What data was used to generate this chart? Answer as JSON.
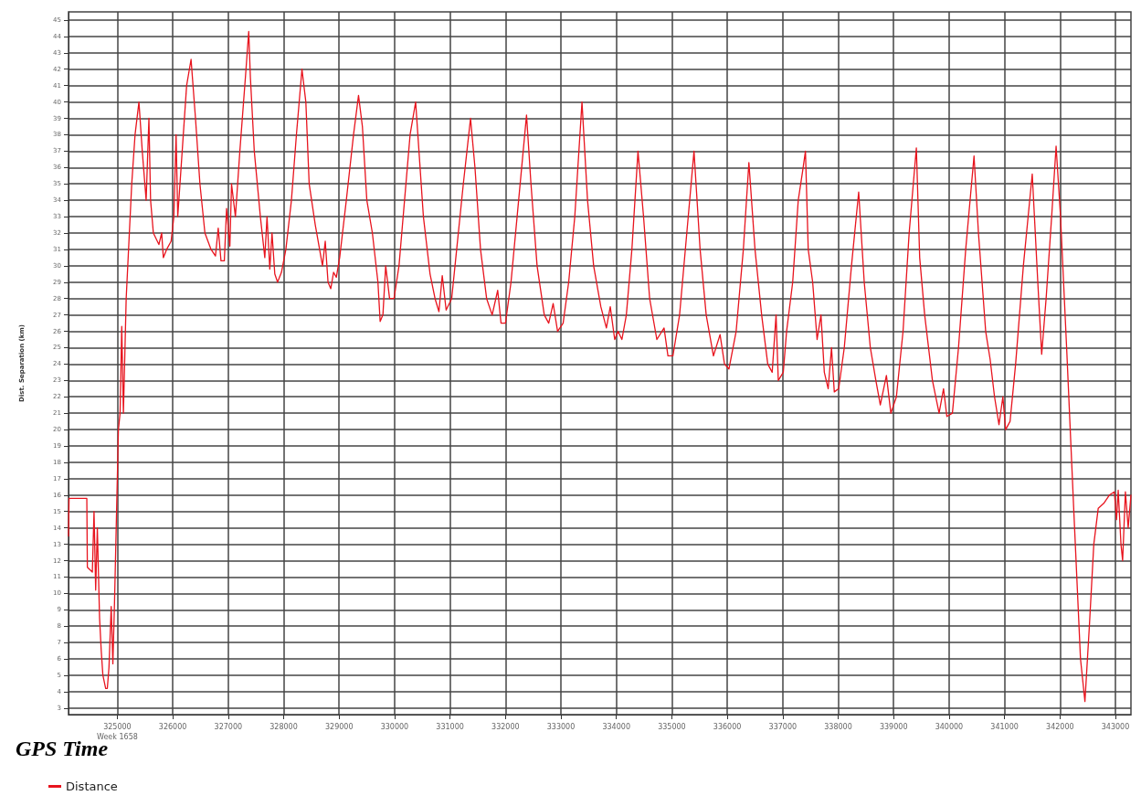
{
  "chart_data": {
    "type": "line",
    "xlabel": "GPS Time",
    "ylabel": "Dist. Separation (km)",
    "xlim": [
      324120,
      343280
    ],
    "xticks": [
      {
        "value": 325000,
        "label": "325000\nWeek 1658"
      },
      326000,
      327000,
      328000,
      329000,
      330000,
      331000,
      332000,
      333000,
      334000,
      335000,
      336000,
      337000,
      338000,
      339000,
      340000,
      341000,
      342000,
      343000
    ],
    "ylim": [
      2.6,
      45.5
    ],
    "yticks": [
      3,
      4,
      5,
      6,
      7,
      8,
      9,
      10,
      11,
      12,
      13,
      14,
      15,
      16,
      17,
      18,
      19,
      20,
      21,
      22,
      23,
      24,
      25,
      26,
      27,
      28,
      29,
      30,
      31,
      32,
      33,
      34,
      35,
      36,
      37,
      38,
      39,
      40,
      41,
      42,
      43,
      44,
      45
    ],
    "grid": true,
    "legend": "bottom left",
    "marker": "none",
    "line_style": "solid",
    "series": [
      {
        "name": "Distance",
        "color": "#e8141e",
        "x": [
          324120,
          324130,
          324450,
          324460,
          324550,
          324580,
          324610,
          324640,
          324680,
          324710,
          324740,
          324790,
          324820,
          324850,
          324890,
          324920,
          324950,
          324980,
          325020,
          325050,
          325080,
          325110,
          325160,
          325260,
          325320,
          325390,
          325450,
          325520,
          325570,
          325600,
          325650,
          325750,
          325800,
          325830,
          325890,
          325970,
          326020,
          326060,
          326090,
          326170,
          326250,
          326330,
          326410,
          326490,
          326580,
          326690,
          326770,
          326820,
          326870,
          326930,
          326970,
          327030,
          327060,
          327130,
          327210,
          327310,
          327370,
          327400,
          327470,
          327580,
          327660,
          327700,
          327750,
          327790,
          327840,
          327890,
          327960,
          328040,
          328140,
          328230,
          328330,
          328400,
          328460,
          328570,
          328700,
          328750,
          328800,
          328850,
          328900,
          328950,
          329010,
          329130,
          329260,
          329350,
          329420,
          329500,
          329600,
          329700,
          329740,
          329790,
          329840,
          329910,
          329990,
          330080,
          330180,
          330280,
          330380,
          330440,
          330520,
          330640,
          330730,
          330800,
          330860,
          330930,
          331030,
          331120,
          331240,
          331370,
          331450,
          331550,
          331660,
          331760,
          331860,
          331920,
          332000,
          332100,
          332210,
          332380,
          332460,
          332570,
          332700,
          332780,
          332860,
          332940,
          333040,
          333140,
          333250,
          333380,
          333480,
          333590,
          333720,
          333820,
          333890,
          333970,
          334030,
          334100,
          334180,
          334280,
          334390,
          334490,
          334600,
          334730,
          334860,
          334930,
          335020,
          335140,
          335270,
          335400,
          335510,
          335620,
          335750,
          335870,
          335950,
          336030,
          336160,
          336290,
          336390,
          336500,
          336620,
          336730,
          336810,
          336880,
          336920,
          337010,
          337070,
          337180,
          337280,
          337360,
          337410,
          337460,
          337540,
          337620,
          337690,
          337750,
          337820,
          337880,
          337930,
          338010,
          338110,
          338240,
          338370,
          338470,
          338580,
          338680,
          338760,
          338870,
          338950,
          339050,
          339170,
          339280,
          339410,
          339470,
          339560,
          339700,
          339820,
          339900,
          339960,
          340060,
          340170,
          340300,
          340450,
          340530,
          340660,
          340740,
          340820,
          340900,
          340970,
          341020,
          341100,
          341200,
          341340,
          341500,
          341600,
          341670,
          341750,
          341850,
          341930,
          342010,
          342120,
          342250,
          342370,
          342450,
          342530,
          342610,
          342690,
          342790,
          342890,
          342980,
          343020,
          343050,
          343100,
          343130,
          343180,
          343230,
          343280
        ],
        "values": [
          13.5,
          15.8,
          15.8,
          11.6,
          11.3,
          15,
          10.2,
          14,
          8.5,
          6.5,
          5,
          4.2,
          4.2,
          5.5,
          9.2,
          5.7,
          9.5,
          14,
          20,
          21,
          26.3,
          21,
          28,
          35,
          38,
          40,
          37,
          34,
          39,
          34,
          32,
          31.3,
          32,
          30.5,
          31,
          31.5,
          33,
          38,
          33,
          37,
          41,
          42.6,
          39,
          35,
          32,
          31,
          30.6,
          32.3,
          30.3,
          30.3,
          33.5,
          31.2,
          35,
          33,
          37,
          41.5,
          44.3,
          41.5,
          37,
          33,
          30.5,
          33,
          29.8,
          32,
          29.5,
          29,
          29.6,
          31,
          34,
          38,
          42,
          40,
          35,
          32.5,
          30,
          31.5,
          29,
          28.6,
          29.6,
          29.3,
          30.5,
          34,
          38,
          40.4,
          38.5,
          34,
          32,
          29,
          26.6,
          27,
          30,
          28,
          28,
          30,
          34,
          38,
          40,
          37,
          33,
          29.5,
          28,
          27.2,
          29.4,
          27.3,
          28,
          31,
          35,
          39,
          36,
          31,
          28,
          27,
          28.5,
          26.5,
          26.5,
          29,
          33,
          39.2,
          35,
          30,
          27,
          26.5,
          27.7,
          26,
          26.5,
          29,
          33,
          40,
          34,
          30,
          27.5,
          26.2,
          27.5,
          25.5,
          26,
          25.5,
          27,
          31,
          37,
          33,
          28,
          25.5,
          26.2,
          24.5,
          24.5,
          27,
          32,
          37,
          31,
          27,
          24.5,
          25.8,
          24,
          23.7,
          26,
          31,
          36.3,
          31,
          27,
          24,
          23.5,
          27,
          23,
          23.5,
          26,
          29,
          34,
          35.8,
          37,
          31,
          29,
          25.5,
          27,
          23.5,
          22.5,
          25,
          22.3,
          22.5,
          25,
          30,
          34.5,
          29,
          25,
          23,
          21.5,
          23.3,
          21,
          22,
          26,
          32,
          37.2,
          30.5,
          27,
          23,
          21,
          22.5,
          20.8,
          21,
          25,
          31,
          36.7,
          32,
          26,
          24.3,
          22,
          20.3,
          22,
          20,
          20.5,
          24,
          30,
          35.6,
          29,
          24.6,
          28,
          33,
          37.3,
          33,
          25,
          15,
          6,
          3.4,
          8,
          13,
          15.2,
          15.5,
          16,
          16.2,
          14.5,
          16.3,
          13,
          12,
          16.2,
          14,
          16
        ]
      }
    ]
  }
}
